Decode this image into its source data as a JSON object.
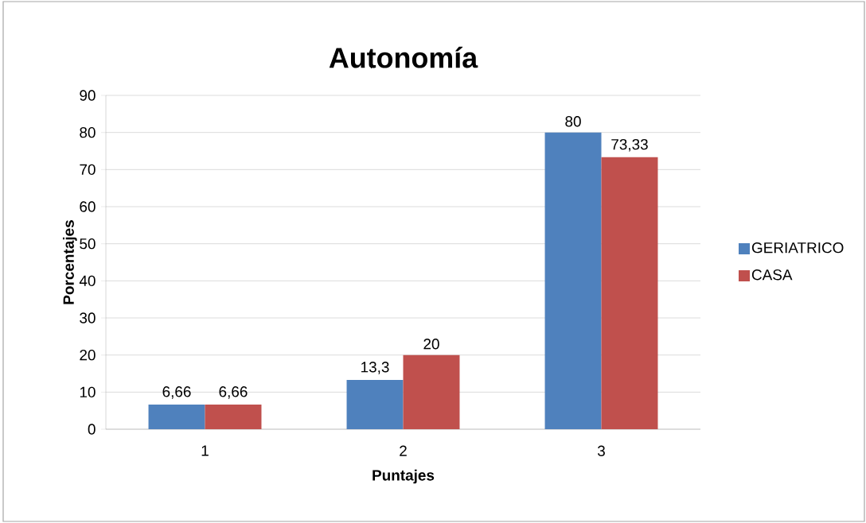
{
  "chart_data": {
    "type": "bar",
    "title": "Autonomía",
    "xlabel": "Puntajes",
    "ylabel": "Porcentajes",
    "categories": [
      "1",
      "2",
      "3"
    ],
    "series": [
      {
        "name": "GERIATRICO",
        "color": "#4f81bd",
        "values": [
          6.66,
          13.3,
          80
        ],
        "value_labels": [
          "6,66",
          "13,3",
          "80"
        ]
      },
      {
        "name": "CASA",
        "color": "#c0504d",
        "values": [
          6.66,
          20,
          73.33
        ],
        "value_labels": [
          "6,66",
          "20",
          "73,33"
        ]
      }
    ],
    "ylim": [
      0,
      90
    ],
    "yticks": [
      0,
      10,
      20,
      30,
      40,
      50,
      60,
      70,
      80,
      90
    ],
    "grid": "y",
    "legend": "right"
  }
}
